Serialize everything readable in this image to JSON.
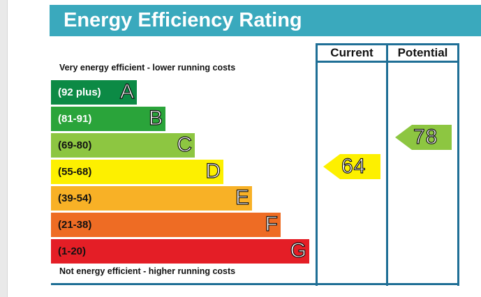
{
  "title": "Energy Efficiency Rating",
  "columns": {
    "current": "Current",
    "potential": "Potential"
  },
  "top_note": "Very energy efficient - lower running costs",
  "bottom_note": "Not energy efficient - higher running costs",
  "bands": [
    {
      "range": "(92 plus)",
      "letter": "A",
      "color": "#0c8a45"
    },
    {
      "range": "(81-91)",
      "letter": "B",
      "color": "#2aa43a"
    },
    {
      "range": "(69-80)",
      "letter": "C",
      "color": "#8dc641"
    },
    {
      "range": "(55-68)",
      "letter": "D",
      "color": "#fdf000"
    },
    {
      "range": "(39-54)",
      "letter": "E",
      "color": "#f8b126"
    },
    {
      "range": "(21-38)",
      "letter": "F",
      "color": "#ee6c24"
    },
    {
      "range": "(1-20)",
      "letter": "G",
      "color": "#e41e26"
    }
  ],
  "ratings": {
    "current": {
      "value": "64",
      "band": "D",
      "color": "#fdf000"
    },
    "potential": {
      "value": "78",
      "band": "C",
      "color": "#8dc641"
    }
  }
}
